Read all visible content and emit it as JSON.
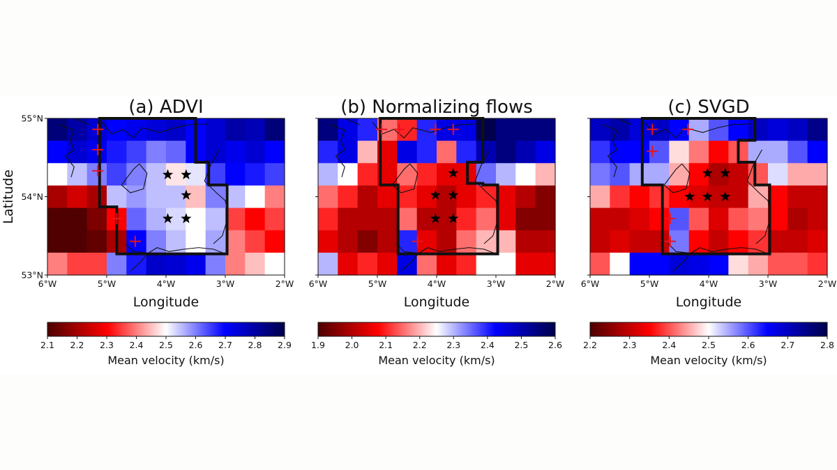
{
  "figure": {
    "background": "#fdfdfb",
    "plot_background": "#ffffff"
  },
  "chart_data": [
    {
      "type": "heatmap",
      "title": "(a) ADVI",
      "xlabel": "Longitude",
      "ylabel": "Latitude",
      "xlim": [
        -6,
        -2
      ],
      "ylim": [
        53,
        55
      ],
      "x_ticks": [
        "6°W",
        "5°W",
        "4°W",
        "3°W",
        "2°W"
      ],
      "y_ticks": [
        "53°N",
        "54°N",
        "55°N"
      ],
      "colorbar": {
        "label": "Mean velocity (km/s)",
        "range": [
          2.1,
          2.9
        ],
        "ticks": [
          "2.1",
          "2.2",
          "2.3",
          "2.4",
          "2.5",
          "2.6",
          "2.7",
          "2.8",
          "2.9"
        ]
      },
      "grid_values": [
        [
          2.85,
          2.8,
          2.75,
          2.7,
          2.72,
          2.74,
          2.76,
          2.7,
          2.75,
          2.8,
          2.78,
          2.85
        ],
        [
          2.7,
          2.75,
          2.72,
          2.68,
          2.65,
          2.6,
          2.62,
          2.7,
          2.75,
          2.72,
          2.75,
          2.7
        ],
        [
          2.5,
          2.55,
          2.6,
          2.65,
          2.6,
          2.55,
          2.48,
          2.52,
          2.65,
          2.7,
          2.68,
          2.65
        ],
        [
          2.2,
          2.25,
          2.2,
          2.55,
          2.58,
          2.55,
          2.55,
          2.45,
          2.6,
          2.55,
          2.5,
          2.4
        ],
        [
          2.1,
          2.1,
          2.15,
          2.3,
          2.62,
          2.56,
          2.53,
          2.5,
          2.55,
          2.35,
          2.3,
          2.35
        ],
        [
          2.1,
          2.1,
          2.12,
          2.2,
          2.7,
          2.6,
          2.55,
          2.5,
          2.57,
          2.4,
          2.35,
          2.3
        ],
        [
          2.4,
          2.35,
          2.35,
          2.6,
          2.68,
          2.76,
          2.75,
          2.72,
          2.6,
          2.4,
          2.45,
          2.5
        ]
      ],
      "crosses": [
        [
          -5.15,
          54.86
        ],
        [
          -5.15,
          54.6
        ],
        [
          -5.15,
          54.33
        ],
        [
          -4.83,
          53.72
        ],
        [
          -4.52,
          53.43
        ]
      ],
      "stars": [
        [
          -3.97,
          54.28
        ],
        [
          -3.66,
          54.28
        ],
        [
          -3.66,
          54.02
        ],
        [
          -3.97,
          53.72
        ],
        [
          -3.66,
          53.72
        ]
      ],
      "boundary": [
        [
          -5.12,
          55.0
        ],
        [
          -3.5,
          55.0
        ],
        [
          -3.5,
          54.44
        ],
        [
          -3.28,
          54.44
        ],
        [
          -3.28,
          54.15
        ],
        [
          -2.97,
          54.15
        ],
        [
          -2.97,
          53.27
        ],
        [
          -4.83,
          53.27
        ],
        [
          -4.83,
          53.87
        ],
        [
          -5.12,
          53.87
        ]
      ],
      "coast": [
        [
          [
            -5.8,
            54.92
          ],
          [
            -5.55,
            54.85
          ],
          [
            -5.62,
            54.72
          ],
          [
            -5.55,
            54.6
          ],
          [
            -5.7,
            54.52
          ],
          [
            -5.55,
            54.38
          ],
          [
            -5.6,
            54.25
          ]
        ],
        [
          [
            -5.3,
            54.92
          ],
          [
            -5.55,
            55.0
          ]
        ],
        [
          [
            -5.08,
            54.95
          ],
          [
            -4.92,
            54.8
          ],
          [
            -4.72,
            54.86
          ],
          [
            -4.55,
            54.75
          ],
          [
            -4.4,
            54.88
          ],
          [
            -4.1,
            54.82
          ],
          [
            -3.85,
            54.88
          ],
          [
            -3.6,
            54.92
          ],
          [
            -3.3,
            54.93
          ]
        ],
        [
          [
            -4.45,
            54.42
          ],
          [
            -4.32,
            54.3
          ],
          [
            -4.38,
            54.1
          ],
          [
            -4.6,
            54.05
          ],
          [
            -4.75,
            54.15
          ],
          [
            -4.55,
            54.35
          ],
          [
            -4.45,
            54.42
          ]
        ],
        [
          [
            -3.1,
            54.6
          ],
          [
            -3.25,
            54.4
          ],
          [
            -3.35,
            54.2
          ],
          [
            -3.15,
            54.05
          ],
          [
            -3.0,
            53.95
          ],
          [
            -2.95,
            53.75
          ],
          [
            -3.05,
            53.5
          ],
          [
            -3.2,
            53.4
          ]
        ],
        [
          [
            -4.68,
            53.4
          ],
          [
            -4.55,
            53.3
          ],
          [
            -4.3,
            53.28
          ],
          [
            -4.15,
            53.35
          ],
          [
            -3.95,
            53.3
          ],
          [
            -3.7,
            53.33
          ],
          [
            -3.45,
            53.35
          ],
          [
            -3.2,
            53.33
          ],
          [
            -3.0,
            53.27
          ]
        ],
        [
          [
            -4.3,
            53.28
          ],
          [
            -4.45,
            53.15
          ],
          [
            -4.6,
            53.05
          ]
        ]
      ]
    },
    {
      "type": "heatmap",
      "title": "(b) Normalizing flows",
      "xlabel": "Longitude",
      "xlim": [
        -6,
        -2
      ],
      "ylim": [
        53,
        55
      ],
      "x_ticks": [
        "6°W",
        "5°W",
        "4°W",
        "3°W",
        "2°W"
      ],
      "colorbar": {
        "label": "Mean velocity (km/s)",
        "range": [
          1.9,
          2.6
        ],
        "ticks": [
          "1.9",
          "2.0",
          "2.1",
          "2.2",
          "2.3",
          "2.4",
          "2.5",
          "2.6"
        ]
      },
      "grid_values": [
        [
          2.55,
          2.45,
          2.4,
          2.15,
          2.1,
          2.4,
          2.45,
          2.45,
          2.6,
          2.55,
          2.55,
          2.55
        ],
        [
          2.4,
          2.45,
          2.2,
          2.05,
          2.45,
          2.4,
          2.15,
          2.4,
          2.5,
          2.55,
          2.5,
          2.45
        ],
        [
          2.3,
          2.25,
          2.1,
          2.05,
          2.15,
          2.1,
          2.05,
          2.05,
          2.35,
          2.3,
          2.25,
          2.2
        ],
        [
          2.15,
          2.1,
          2.0,
          2.05,
          2.1,
          2.05,
          2.0,
          2.05,
          2.1,
          2.05,
          2.0,
          1.95
        ],
        [
          2.1,
          2.0,
          2.0,
          2.0,
          2.15,
          2.0,
          2.0,
          2.1,
          2.15,
          2.05,
          1.95,
          1.95
        ],
        [
          2.05,
          2.0,
          1.95,
          2.0,
          2.4,
          2.05,
          2.0,
          2.15,
          2.2,
          2.2,
          2.0,
          2.0
        ],
        [
          2.3,
          2.05,
          2.1,
          2.05,
          2.45,
          2.15,
          2.05,
          2.1,
          2.25,
          2.25,
          2.05,
          2.05
        ]
      ],
      "crosses": [
        [
          -4.93,
          54.86
        ],
        [
          -4.63,
          54.86
        ],
        [
          -4.02,
          54.86
        ],
        [
          -3.72,
          54.86
        ],
        [
          -4.32,
          53.43
        ]
      ],
      "stars": [
        [
          -3.72,
          54.3
        ],
        [
          -4.02,
          54.02
        ],
        [
          -3.72,
          54.02
        ],
        [
          -4.02,
          53.72
        ],
        [
          -3.72,
          53.72
        ]
      ],
      "boundary": [
        [
          -4.95,
          55.0
        ],
        [
          -3.22,
          55.0
        ],
        [
          -3.22,
          54.44
        ],
        [
          -3.48,
          54.44
        ],
        [
          -3.48,
          54.17
        ],
        [
          -3.22,
          54.17
        ],
        [
          -3.22,
          54.15
        ],
        [
          -2.97,
          54.15
        ],
        [
          -2.97,
          53.27
        ],
        [
          -4.65,
          53.27
        ],
        [
          -4.65,
          54.15
        ],
        [
          -4.95,
          54.15
        ]
      ],
      "coast": [
        [
          [
            -5.8,
            54.92
          ],
          [
            -5.55,
            54.85
          ],
          [
            -5.62,
            54.72
          ],
          [
            -5.55,
            54.6
          ],
          [
            -5.7,
            54.52
          ],
          [
            -5.55,
            54.38
          ],
          [
            -5.6,
            54.25
          ]
        ],
        [
          [
            -5.3,
            54.92
          ],
          [
            -5.55,
            55.0
          ]
        ],
        [
          [
            -5.08,
            54.95
          ],
          [
            -4.92,
            54.8
          ],
          [
            -4.72,
            54.86
          ],
          [
            -4.55,
            54.75
          ],
          [
            -4.4,
            54.88
          ],
          [
            -4.1,
            54.82
          ],
          [
            -3.85,
            54.88
          ],
          [
            -3.6,
            54.92
          ],
          [
            -3.3,
            54.93
          ]
        ],
        [
          [
            -4.45,
            54.42
          ],
          [
            -4.32,
            54.3
          ],
          [
            -4.38,
            54.1
          ],
          [
            -4.6,
            54.05
          ],
          [
            -4.75,
            54.15
          ],
          [
            -4.55,
            54.35
          ],
          [
            -4.45,
            54.42
          ]
        ],
        [
          [
            -3.1,
            54.6
          ],
          [
            -3.25,
            54.4
          ],
          [
            -3.35,
            54.2
          ],
          [
            -3.15,
            54.05
          ],
          [
            -3.0,
            53.95
          ],
          [
            -2.95,
            53.75
          ],
          [
            -3.05,
            53.5
          ],
          [
            -3.2,
            53.4
          ]
        ],
        [
          [
            -4.68,
            53.4
          ],
          [
            -4.55,
            53.3
          ],
          [
            -4.3,
            53.28
          ],
          [
            -4.15,
            53.35
          ],
          [
            -3.95,
            53.3
          ],
          [
            -3.7,
            53.33
          ],
          [
            -3.45,
            53.35
          ],
          [
            -3.2,
            53.33
          ],
          [
            -3.0,
            53.27
          ]
        ],
        [
          [
            -4.3,
            53.28
          ],
          [
            -4.45,
            53.15
          ],
          [
            -4.6,
            53.05
          ]
        ]
      ]
    },
    {
      "type": "heatmap",
      "title": "(c) SVGD",
      "xlabel": "Longitude",
      "xlim": [
        -6,
        -2
      ],
      "ylim": [
        53,
        55
      ],
      "x_ticks": [
        "6°W",
        "5°W",
        "4°W",
        "3°W",
        "2°W"
      ],
      "colorbar": {
        "label": "Mean velocity (km/s)",
        "range": [
          2.2,
          2.8
        ],
        "ticks": [
          "2.2",
          "2.3",
          "2.4",
          "2.5",
          "2.6",
          "2.7",
          "2.8"
        ]
      },
      "grid_values": [
        [
          2.7,
          2.72,
          2.68,
          2.7,
          2.65,
          2.55,
          2.6,
          2.65,
          2.7,
          2.68,
          2.7,
          2.75
        ],
        [
          2.62,
          2.65,
          2.65,
          2.6,
          2.48,
          2.42,
          2.35,
          2.4,
          2.55,
          2.55,
          2.6,
          2.65
        ],
        [
          2.58,
          2.6,
          2.55,
          2.55,
          2.45,
          2.35,
          2.28,
          2.3,
          2.4,
          2.52,
          2.45,
          2.45
        ],
        [
          2.45,
          2.38,
          2.35,
          2.38,
          2.35,
          2.32,
          2.3,
          2.3,
          2.45,
          2.35,
          2.3,
          2.3
        ],
        [
          2.3,
          2.3,
          2.32,
          2.35,
          2.6,
          2.4,
          2.32,
          2.4,
          2.42,
          2.35,
          2.28,
          2.3
        ],
        [
          2.3,
          2.32,
          2.3,
          2.3,
          2.58,
          2.35,
          2.3,
          2.35,
          2.38,
          2.3,
          2.3,
          2.32
        ],
        [
          2.4,
          2.5,
          2.65,
          2.65,
          2.68,
          2.67,
          2.65,
          2.48,
          2.45,
          2.4,
          2.4,
          2.38
        ]
      ],
      "crosses": [
        [
          -4.95,
          54.86
        ],
        [
          -4.35,
          54.86
        ],
        [
          -4.95,
          54.58
        ],
        [
          -4.65,
          53.72
        ],
        [
          -4.65,
          53.43
        ]
      ],
      "stars": [
        [
          -4.02,
          54.3
        ],
        [
          -3.72,
          54.3
        ],
        [
          -4.32,
          54.0
        ],
        [
          -4.02,
          54.0
        ],
        [
          -3.72,
          54.0
        ]
      ],
      "boundary": [
        [
          -5.12,
          55.0
        ],
        [
          -3.22,
          55.0
        ],
        [
          -3.22,
          54.72
        ],
        [
          -3.5,
          54.72
        ],
        [
          -3.5,
          54.44
        ],
        [
          -3.22,
          54.44
        ],
        [
          -3.22,
          54.15
        ],
        [
          -2.97,
          54.15
        ],
        [
          -2.97,
          53.27
        ],
        [
          -4.78,
          53.27
        ],
        [
          -4.78,
          54.15
        ],
        [
          -5.12,
          54.15
        ]
      ],
      "coast": [
        [
          [
            -5.8,
            54.92
          ],
          [
            -5.55,
            54.85
          ],
          [
            -5.62,
            54.72
          ],
          [
            -5.55,
            54.6
          ],
          [
            -5.7,
            54.52
          ],
          [
            -5.55,
            54.38
          ],
          [
            -5.6,
            54.25
          ]
        ],
        [
          [
            -5.3,
            54.92
          ],
          [
            -5.55,
            55.0
          ]
        ],
        [
          [
            -5.08,
            54.95
          ],
          [
            -4.92,
            54.8
          ],
          [
            -4.72,
            54.86
          ],
          [
            -4.55,
            54.75
          ],
          [
            -4.4,
            54.88
          ],
          [
            -4.1,
            54.82
          ],
          [
            -3.85,
            54.88
          ],
          [
            -3.6,
            54.92
          ],
          [
            -3.3,
            54.93
          ]
        ],
        [
          [
            -4.45,
            54.42
          ],
          [
            -4.32,
            54.3
          ],
          [
            -4.38,
            54.1
          ],
          [
            -4.6,
            54.05
          ],
          [
            -4.75,
            54.15
          ],
          [
            -4.55,
            54.35
          ],
          [
            -4.45,
            54.42
          ]
        ],
        [
          [
            -3.1,
            54.6
          ],
          [
            -3.25,
            54.4
          ],
          [
            -3.35,
            54.2
          ],
          [
            -3.15,
            54.05
          ],
          [
            -3.0,
            53.95
          ],
          [
            -2.95,
            53.75
          ],
          [
            -3.05,
            53.5
          ],
          [
            -3.2,
            53.4
          ]
        ],
        [
          [
            -4.68,
            53.4
          ],
          [
            -4.55,
            53.3
          ],
          [
            -4.3,
            53.28
          ],
          [
            -4.15,
            53.35
          ],
          [
            -3.95,
            53.3
          ],
          [
            -3.7,
            53.33
          ],
          [
            -3.45,
            53.35
          ],
          [
            -3.2,
            53.33
          ],
          [
            -3.0,
            53.27
          ]
        ],
        [
          [
            -4.3,
            53.28
          ],
          [
            -4.45,
            53.15
          ],
          [
            -4.6,
            53.05
          ]
        ]
      ]
    }
  ]
}
